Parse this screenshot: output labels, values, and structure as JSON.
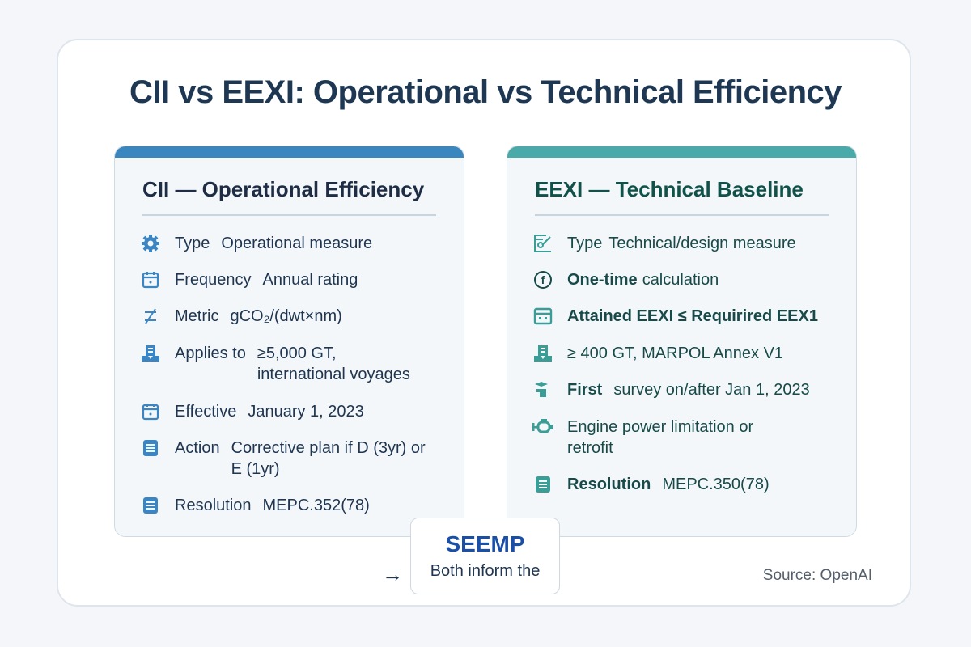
{
  "title": "CII vs EEXI: Operational vs Technical Efficiency",
  "colors": {
    "cii_accent": "#3a87c0",
    "eexi_accent": "#4aa9a9",
    "seemp": "#1a4fa8",
    "cii_icon": "#3a86c4",
    "eexi_icon": "#3a9e97"
  },
  "cii": {
    "title": "CII — Operational Efficiency",
    "rows": [
      {
        "icon": "gear-icon",
        "label": "Type",
        "value": "Operational measure"
      },
      {
        "icon": "calendar-icon",
        "label": "Frequency",
        "value": "Annual rating"
      },
      {
        "icon": "ratio-icon",
        "label": "Metric",
        "value": "gCO₂/(dwt×nm)"
      },
      {
        "icon": "ship-icon",
        "label": "Applies to",
        "value": "≥5,000 GT, international voyages"
      },
      {
        "icon": "calendar-icon",
        "label": "Effective",
        "value": "January 1, 2023"
      },
      {
        "icon": "document-icon",
        "label": "Action",
        "value": "Corrective plan if D (3yr) or E (1yr)"
      },
      {
        "icon": "document-icon",
        "label": "Resolution",
        "value": "MEPC.352(78)"
      }
    ]
  },
  "eexi": {
    "title": "EEXI — Technical Baseline",
    "rows": [
      {
        "icon": "design-icon",
        "label": "Type",
        "value": "Technical/design measure"
      },
      {
        "icon": "f-circle-icon",
        "label": "One-time",
        "value": "calculation"
      },
      {
        "icon": "window-icon",
        "label": "Attained EEXI ≤ Requirired EEX1",
        "value": ""
      },
      {
        "icon": "ship-icon",
        "label": "",
        "value": "≥ 400 GT, MARPOL Annex V1"
      },
      {
        "icon": "survey-icon",
        "label": "First",
        "value": "survey on/after Jan 1, 2023"
      },
      {
        "icon": "engine-icon",
        "label": "",
        "value": "Engine power limitation or retrofit"
      },
      {
        "icon": "document-icon",
        "label": "Resolution",
        "value": "MEPC.350(78)"
      }
    ]
  },
  "seemp": {
    "title": "SEEMP",
    "subtitle": "Both inform the",
    "arrow": "→"
  },
  "source": "Source: OpenAI"
}
